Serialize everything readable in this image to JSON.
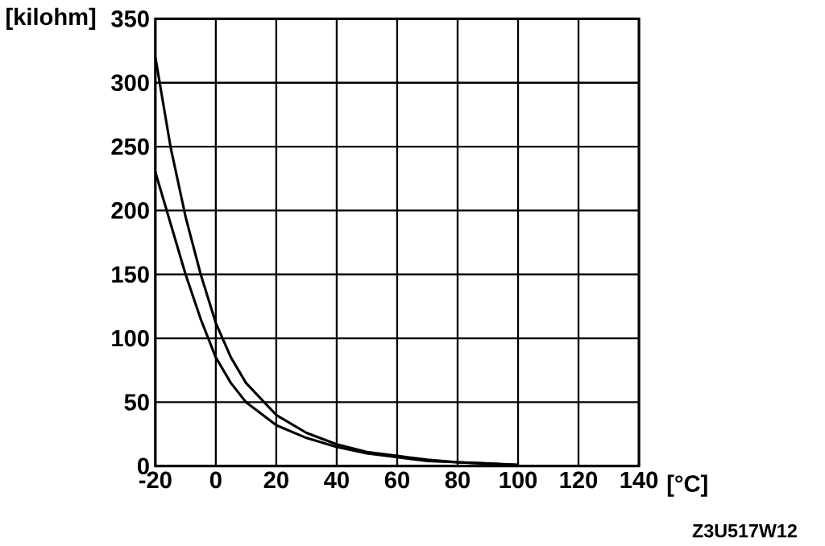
{
  "chart_data": {
    "type": "line",
    "xlabel": "[°C]",
    "ylabel": "[kilohm]",
    "xlim": [
      -20,
      140
    ],
    "ylim": [
      0,
      350
    ],
    "xticks": [
      -20,
      0,
      20,
      40,
      60,
      80,
      100,
      120,
      140
    ],
    "yticks": [
      0,
      50,
      100,
      150,
      200,
      250,
      300,
      350
    ],
    "grid": true,
    "marker": "none",
    "line_style": "solid",
    "series": [
      {
        "color": "#000000",
        "x": [
          -20,
          -15,
          -10,
          -5,
          0,
          5,
          10,
          20,
          30,
          40,
          50,
          60,
          70,
          80,
          90,
          100
        ],
        "values": [
          320,
          250,
          195,
          150,
          112,
          85,
          65,
          40,
          26,
          17,
          11,
          8,
          5,
          3,
          2,
          1
        ]
      },
      {
        "color": "#000000",
        "x": [
          -20,
          -15,
          -10,
          -5,
          0,
          5,
          10,
          20,
          30,
          40,
          50,
          60,
          70,
          80,
          90,
          100
        ],
        "values": [
          230,
          190,
          150,
          115,
          85,
          65,
          50,
          32,
          22,
          15,
          10,
          7,
          4,
          3,
          2,
          1
        ]
      }
    ],
    "annotations": [
      "Z3U517W12"
    ]
  }
}
